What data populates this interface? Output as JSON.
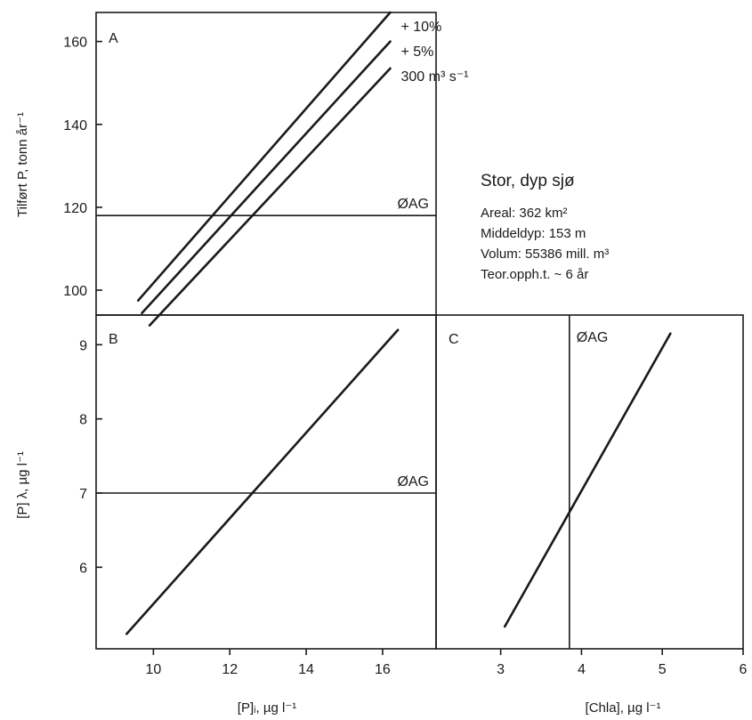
{
  "chart_data": [
    {
      "panel": "A",
      "type": "line",
      "ylabel": "Tilført P, tonn år⁻¹",
      "yticks": [
        100,
        120,
        140,
        160
      ],
      "ylim": [
        94,
        167
      ],
      "xlim": [
        8.5,
        17.4
      ],
      "reference_line": {
        "axis": "y",
        "value": 118,
        "label": "ØAG"
      },
      "series": [
        {
          "name": "+ 10%",
          "points": [
            [
              9.6,
              97.5
            ],
            [
              16.2,
              167
            ]
          ]
        },
        {
          "name": "+ 5%",
          "points": [
            [
              9.7,
              94.5
            ],
            [
              16.2,
              160
            ]
          ]
        },
        {
          "name": "300 m³ s⁻¹",
          "points": [
            [
              9.9,
              91.5
            ],
            [
              16.2,
              153.5
            ]
          ]
        }
      ]
    },
    {
      "panel": "B",
      "type": "line",
      "xlabel": "[P]ᵢ, µg l⁻¹",
      "ylabel": "[P] λ, µg l⁻¹",
      "xticks": [
        10,
        12,
        14,
        16
      ],
      "yticks": [
        6,
        7,
        8,
        9
      ],
      "xlim": [
        8.5,
        17.4
      ],
      "ylim": [
        4.9,
        9.4
      ],
      "reference_line": {
        "axis": "y",
        "value": 7.0,
        "label": "ØAG"
      },
      "series": [
        {
          "name": "",
          "points": [
            [
              9.3,
              5.1
            ],
            [
              16.4,
              9.2
            ]
          ]
        }
      ]
    },
    {
      "panel": "C",
      "type": "line",
      "xlabel": "[Chla], µg l⁻¹",
      "xticks": [
        3,
        4,
        5,
        6
      ],
      "xlim": [
        2.2,
        6.0
      ],
      "ylim": [
        4.9,
        9.4
      ],
      "reference_line": {
        "axis": "x",
        "value": 3.85,
        "label": "ØAG"
      },
      "series": [
        {
          "name": "",
          "points": [
            [
              3.05,
              5.2
            ],
            [
              5.1,
              9.15
            ]
          ]
        }
      ]
    }
  ],
  "info_box": {
    "title": "Stor, dyp sjø",
    "lines": [
      "Areal: 362 km²",
      "Middeldyp: 153 m",
      "Volum: 55386 mill. m³",
      "Teor.opph.t. ~ 6 år"
    ]
  }
}
